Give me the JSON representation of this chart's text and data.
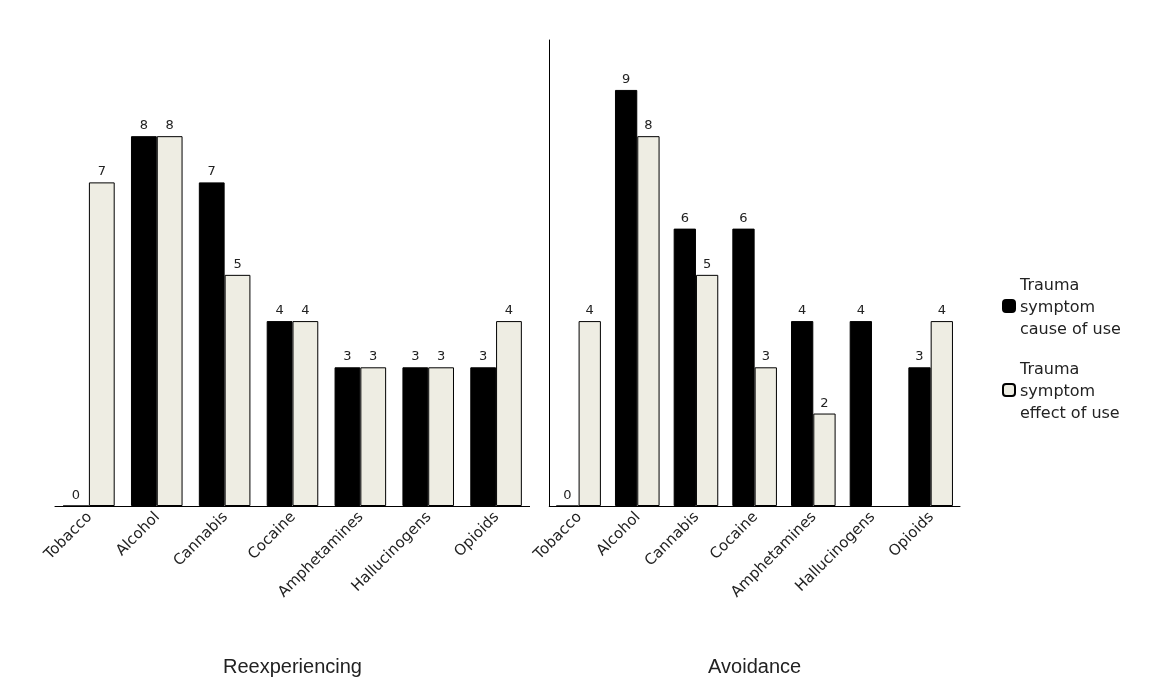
{
  "chart_data": [
    {
      "type": "bar",
      "xlabel": "Reexperiencing",
      "categories": [
        "Tobacco",
        "Alcohol",
        "Cannabis",
        "Cocaine",
        "Amphetamines",
        "Hallucinogens",
        "Opioids"
      ],
      "series": [
        {
          "color": "#000000",
          "values": [
            0,
            8,
            7,
            4,
            3,
            3,
            3
          ]
        },
        {
          "color": "#eeede3",
          "values": [
            7,
            8,
            5,
            4,
            3,
            3,
            4
          ]
        }
      ],
      "data_labels": true,
      "tick_labels": "x",
      "grid": false,
      "legend": false
    },
    {
      "type": "bar",
      "xlabel": "Avoidance",
      "categories": [
        "Tobacco",
        "Alcohol",
        "Cannabis",
        "Cocaine",
        "Amphetamines",
        "Hallucinogens",
        "Opioids"
      ],
      "series": [
        {
          "name": "Trauma symptom cause of use",
          "color": "#000000",
          "values": [
            0,
            9,
            6,
            6,
            4,
            4,
            3
          ]
        },
        {
          "name": "Trauma symptom effect of use",
          "color": "#eeede3",
          "values": [
            4,
            8,
            5,
            3,
            2,
            null,
            4
          ]
        }
      ],
      "data_labels": true,
      "tick_labels": "x",
      "grid": false,
      "legend": "right"
    }
  ]
}
